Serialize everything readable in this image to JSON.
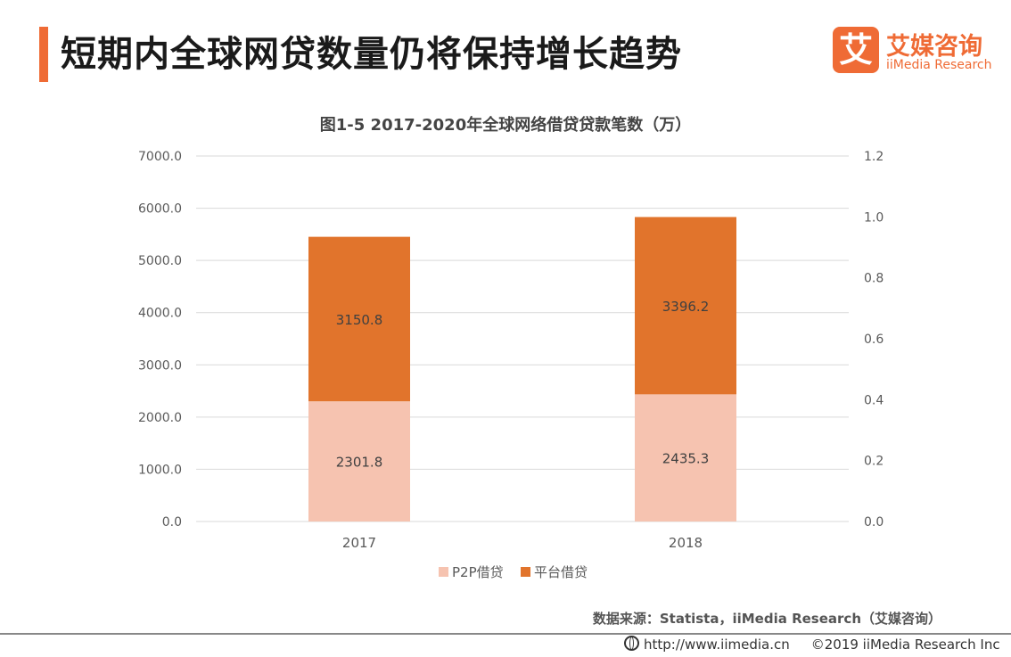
{
  "header": {
    "title": "短期内全球网贷数量仍将保持增长趋势",
    "logo_mark": "艾",
    "logo_cn": "艾媒咨询",
    "logo_en": "iiMedia Research",
    "accent_color": "#ef6b35"
  },
  "chart_data": {
    "type": "bar",
    "stacked": true,
    "title": "图1-5 2017-2020年全球网络借贷贷款笔数（万）",
    "categories": [
      "2017",
      "2018"
    ],
    "series": [
      {
        "name": "P2P借贷",
        "values": [
          2301.8,
          2435.3
        ],
        "color": "#f6c3b0"
      },
      {
        "name": "平台借贷",
        "values": [
          3150.8,
          3396.2
        ],
        "color": "#e1742c"
      }
    ],
    "ylim": [
      0,
      7000
    ],
    "yticks": [
      "0.0",
      "1000.0",
      "2000.0",
      "3000.0",
      "4000.0",
      "5000.0",
      "6000.0",
      "7000.0"
    ],
    "y2lim": [
      0,
      1.2
    ],
    "y2ticks": [
      "0.0",
      "0.2",
      "0.4",
      "0.6",
      "0.8",
      "1.0",
      "1.2"
    ],
    "grid": true,
    "legend": "bottom"
  },
  "footer": {
    "source": "数据来源：Statista，iiMedia Research（艾媒咨询）",
    "url": "http://www.iimedia.cn",
    "copyright": "©2019 iiMedia Research Inc"
  }
}
